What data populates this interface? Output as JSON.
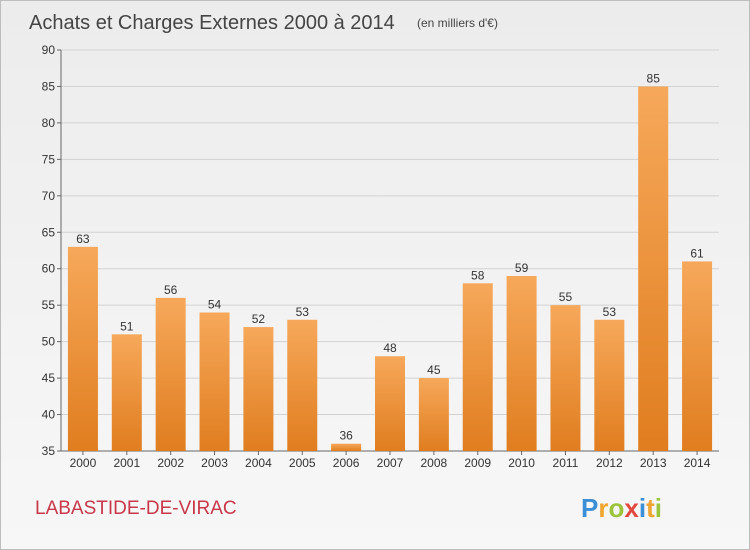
{
  "title": "Achats et Charges Externes 2000 à 2014",
  "unit": "(en milliers d'€)",
  "town": "LABASTIDE-DE-VIRAC",
  "logo": "Proxiti",
  "colors": {
    "bar_top": "#f6a85a",
    "bar_bottom": "#e07d1f",
    "town": "#c8374a"
  },
  "chart_data": {
    "type": "bar",
    "categories": [
      "2000",
      "2001",
      "2002",
      "2003",
      "2004",
      "2005",
      "2006",
      "2007",
      "2008",
      "2009",
      "2010",
      "2011",
      "2012",
      "2013",
      "2014"
    ],
    "values": [
      63,
      51,
      56,
      54,
      52,
      53,
      36,
      48,
      45,
      58,
      59,
      55,
      53,
      85,
      61
    ],
    "ylim": [
      35,
      90
    ],
    "yticks": [
      35,
      40,
      45,
      50,
      55,
      60,
      65,
      70,
      75,
      80,
      85,
      90
    ],
    "grid": true,
    "legend": "none"
  }
}
